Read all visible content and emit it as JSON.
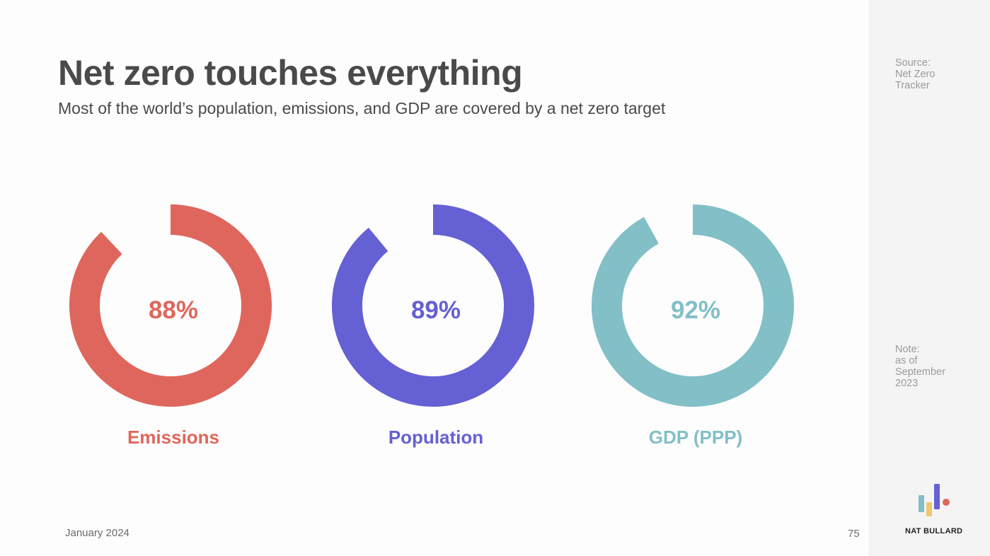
{
  "header": {
    "title": "Net zero touches everything",
    "subtitle": "Most of the world’s population, emissions, and GDP are covered by a net zero target"
  },
  "sidebar": {
    "source_label": "Source:",
    "source_lines": [
      "Net Zero",
      "Tracker"
    ],
    "note_label": "Note:",
    "note_lines": [
      "as of",
      "September",
      "2023"
    ],
    "brand": "NAT BULLARD",
    "logo_icon": "bar-chart-logo-icon"
  },
  "footer": {
    "date": "January 2024",
    "page_number": "75"
  },
  "chart_data": {
    "type": "pie",
    "variant": "donut",
    "series": [
      {
        "name": "Emissions",
        "value": 88,
        "label": "88%",
        "color": "#df665c"
      },
      {
        "name": "Population",
        "value": 89,
        "label": "89%",
        "color": "#6560d3"
      },
      {
        "name": "GDP (PPP)",
        "value": 92,
        "label": "92%",
        "color": "#82bfc7"
      }
    ],
    "max": 100
  }
}
